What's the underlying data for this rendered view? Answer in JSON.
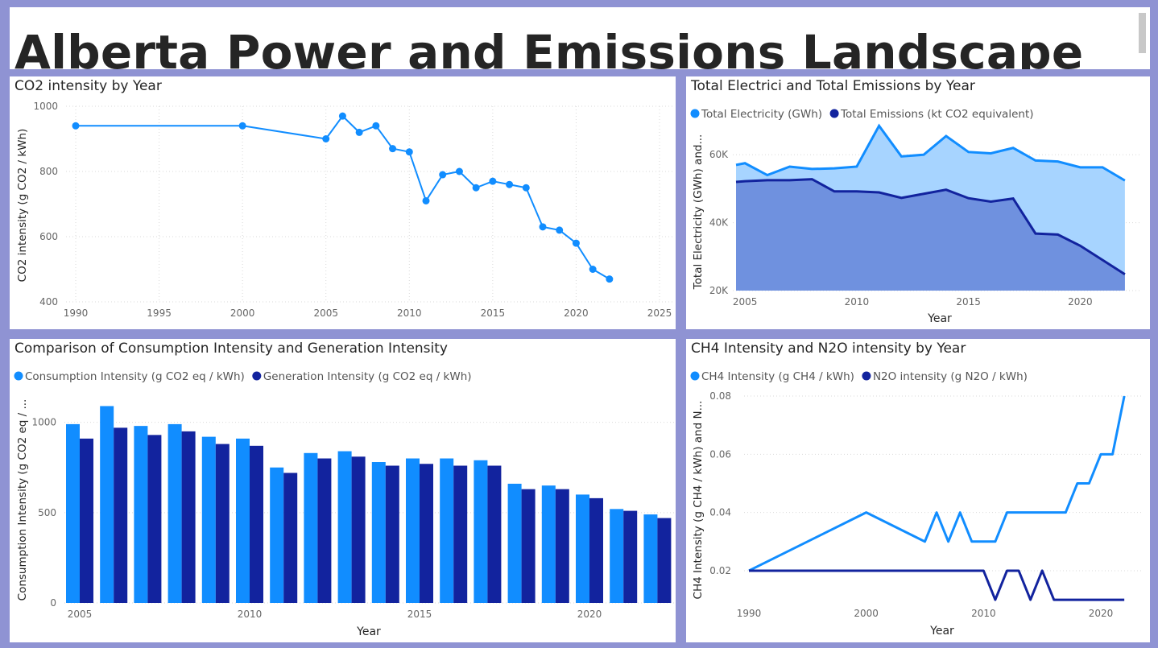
{
  "page_title": "Alberta Power and Emissions Landscape",
  "colors": {
    "light": "#118dff",
    "dark": "#12239e",
    "area_light": "#a7d4ff",
    "area_dark": "#6a8bdc",
    "frame": "#8f93d3"
  },
  "chart_data": [
    {
      "type": "line",
      "title": "CO2 intensity by Year",
      "ylabel": "CO2 intensity (g CO2 / kWh)",
      "xlabel": "",
      "x_ticks": [
        1990,
        1995,
        2000,
        2005,
        2010,
        2015,
        2020,
        2025
      ],
      "y_ticks": [
        400,
        600,
        800,
        1000
      ],
      "xlim": [
        1990,
        2025
      ],
      "ylim": [
        400,
        1000
      ],
      "grid": true,
      "series": [
        {
          "x": [
            1990,
            2000,
            2005,
            2006,
            2007,
            2008,
            2009,
            2010,
            2011,
            2012,
            2013,
            2014,
            2015,
            2016,
            2017,
            2018,
            2019,
            2020,
            2021,
            2022
          ],
          "y": [
            940,
            940,
            900,
            970,
            920,
            940,
            870,
            860,
            710,
            790,
            800,
            750,
            770,
            760,
            750,
            630,
            620,
            580,
            500,
            470
          ]
        }
      ]
    },
    {
      "type": "area",
      "title": "Total Electrici and Total Emissions by Year",
      "ylabel": "Total Electricity (GWh) and...",
      "xlabel": "Year",
      "x_ticks": [
        2005,
        2010,
        2015,
        2020
      ],
      "y_ticks": [
        20000,
        40000,
        60000
      ],
      "y_tick_labels": [
        "20K",
        "40K",
        "60K"
      ],
      "xlim": [
        2004.6,
        2022.4
      ],
      "ylim": [
        20000,
        70000
      ],
      "legend_position": "top-left",
      "x": [
        2004.6,
        2005,
        2006,
        2007,
        2008,
        2009,
        2010,
        2011,
        2012,
        2013,
        2014,
        2015,
        2016,
        2017,
        2018,
        2019,
        2020,
        2021,
        2022
      ],
      "series": [
        {
          "name": "Total Electricity (GWh)",
          "values": [
            57000,
            57500,
            54000,
            56500,
            55800,
            56000,
            56500,
            68500,
            59500,
            60000,
            65500,
            60800,
            60400,
            62000,
            58300,
            58000,
            56300,
            56300,
            52400
          ]
        },
        {
          "name": "Total Emissions (kt CO2 equivalent)",
          "values": [
            52000,
            52200,
            52500,
            52500,
            52800,
            49200,
            49200,
            48900,
            47300,
            48500,
            49700,
            47200,
            46200,
            47100,
            36800,
            36500,
            33200,
            29000,
            24800
          ]
        }
      ]
    },
    {
      "type": "bar",
      "title": "Comparison of Consumption Intensity and Generation Intensity",
      "ylabel": "Consumption Intensity (g CO2 eq / ...",
      "xlabel": "Year",
      "x_ticks": [
        2005,
        2010,
        2015,
        2020
      ],
      "y_ticks": [
        0,
        500,
        1000
      ],
      "ylim": [
        0,
        1150
      ],
      "legend_position": "top-left",
      "categories": [
        2005,
        2006,
        2007,
        2008,
        2009,
        2010,
        2011,
        2012,
        2013,
        2014,
        2015,
        2016,
        2017,
        2018,
        2019,
        2020,
        2021,
        2022
      ],
      "series": [
        {
          "name": "Consumption Intensity (g CO2 eq / kWh)",
          "values": [
            990,
            1090,
            980,
            990,
            920,
            910,
            750,
            830,
            840,
            780,
            800,
            800,
            790,
            660,
            650,
            600,
            520,
            490
          ]
        },
        {
          "name": "Generation Intensity (g CO2 eq / kWh)",
          "values": [
            910,
            970,
            930,
            950,
            880,
            870,
            720,
            800,
            810,
            760,
            770,
            760,
            760,
            630,
            630,
            580,
            510,
            470
          ]
        }
      ]
    },
    {
      "type": "line",
      "title": "CH4 Intensity and N2O intensity by Year",
      "ylabel": "CH4 Intensity (g CH4 / kWh) and N...",
      "xlabel": "Year",
      "x_ticks": [
        1990,
        2000,
        2010,
        2020
      ],
      "y_ticks": [
        0.02,
        0.04,
        0.06,
        0.08
      ],
      "xlim": [
        1990,
        2023.5
      ],
      "ylim": [
        0.0092,
        0.08
      ],
      "legend_position": "top-left",
      "series": [
        {
          "name": "CH4 Intensity (g CH4 / kWh)",
          "x": [
            1990,
            2000,
            2005,
            2006,
            2007,
            2008,
            2009,
            2010,
            2011,
            2012,
            2013,
            2014,
            2015,
            2016,
            2017,
            2018,
            2019,
            2020,
            2021,
            2022
          ],
          "y": [
            0.02,
            0.04,
            0.03,
            0.04,
            0.03,
            0.04,
            0.03,
            0.03,
            0.03,
            0.04,
            0.04,
            0.04,
            0.04,
            0.04,
            0.04,
            0.05,
            0.05,
            0.06,
            0.06,
            0.08
          ]
        },
        {
          "name": "N2O intensity (g N2O / kWh)",
          "x": [
            1990,
            2000,
            2005,
            2010,
            2011,
            2012,
            2013,
            2014,
            2015,
            2016,
            2017,
            2018,
            2019,
            2020,
            2021,
            2022
          ],
          "y": [
            0.02,
            0.02,
            0.02,
            0.02,
            0.01,
            0.02,
            0.02,
            0.01,
            0.02,
            0.01,
            0.01,
            0.01,
            0.01,
            0.01,
            0.01,
            0.01
          ]
        }
      ]
    }
  ]
}
